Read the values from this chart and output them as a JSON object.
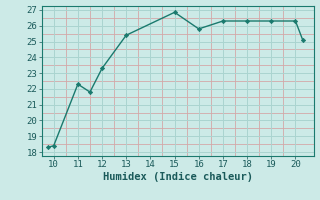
{
  "x": [
    9.75,
    10.0,
    11.0,
    11.5,
    12.0,
    13.0,
    15.0,
    16.0,
    17.0,
    18.0,
    19.0,
    20.0,
    20.3
  ],
  "y": [
    18.3,
    18.4,
    22.3,
    21.8,
    23.3,
    25.4,
    26.85,
    25.8,
    26.3,
    26.3,
    26.3,
    26.3,
    25.1
  ],
  "line_color": "#1a7a6e",
  "bg_color": "#cceae7",
  "grid_major_color": "#aad4d0",
  "grid_minor_color": "#d4a8a8",
  "xlabel": "Humidex (Indice chaleur)",
  "xlim": [
    9.5,
    20.75
  ],
  "ylim": [
    17.75,
    27.25
  ],
  "xticks": [
    10,
    11,
    12,
    13,
    14,
    15,
    16,
    17,
    18,
    19,
    20
  ],
  "yticks": [
    18,
    19,
    20,
    21,
    22,
    23,
    24,
    25,
    26,
    27
  ],
  "xlabel_fontsize": 7.5,
  "tick_fontsize": 6.5,
  "tick_color": "#1a5a5a",
  "spine_color": "#1a7a6e"
}
